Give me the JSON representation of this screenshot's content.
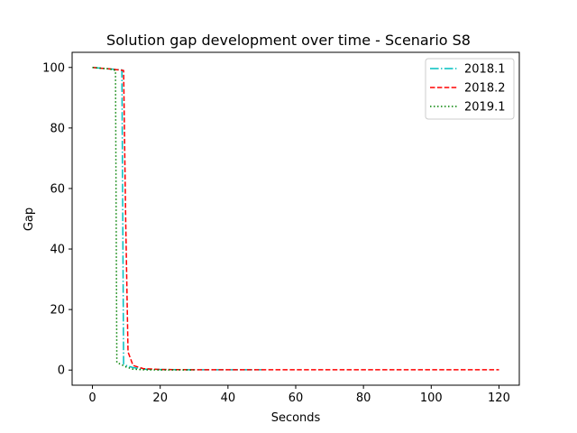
{
  "chart_data": {
    "type": "line",
    "title": "Solution gap development over time - Scenario S8",
    "xlabel": "Seconds",
    "ylabel": "Gap",
    "xlim": [
      -6,
      126
    ],
    "ylim": [
      -5,
      105
    ],
    "xticks": [
      0,
      20,
      40,
      60,
      80,
      100,
      120
    ],
    "yticks": [
      0,
      20,
      40,
      60,
      80,
      100
    ],
    "grid": false,
    "legend_position": "top-right",
    "series": [
      {
        "name": "2018.1",
        "color": "#00bfbf",
        "style": "dashdot",
        "x": [
          0,
          5,
          8.7,
          9.2,
          10,
          12,
          15,
          20,
          30,
          50
        ],
        "y": [
          100,
          99.5,
          99.2,
          2,
          1.5,
          0.8,
          0.3,
          0.2,
          0.1,
          0.1
        ]
      },
      {
        "name": "2018.2",
        "color": "#ff0000",
        "style": "dashed",
        "x": [
          0,
          5,
          9.2,
          9.8,
          10.5,
          12,
          15,
          20,
          30,
          60,
          120
        ],
        "y": [
          100,
          99.5,
          99,
          50,
          6,
          1.5,
          0.5,
          0.2,
          0.1,
          0.1,
          0.1
        ]
      },
      {
        "name": "2019.1",
        "color": "#008000",
        "style": "dotted",
        "x": [
          0,
          5,
          6.8,
          7.2,
          10,
          12,
          15,
          20,
          30
        ],
        "y": [
          100,
          99.5,
          99,
          2.5,
          1,
          0.3,
          0.1,
          0.05,
          0.05
        ]
      }
    ]
  }
}
